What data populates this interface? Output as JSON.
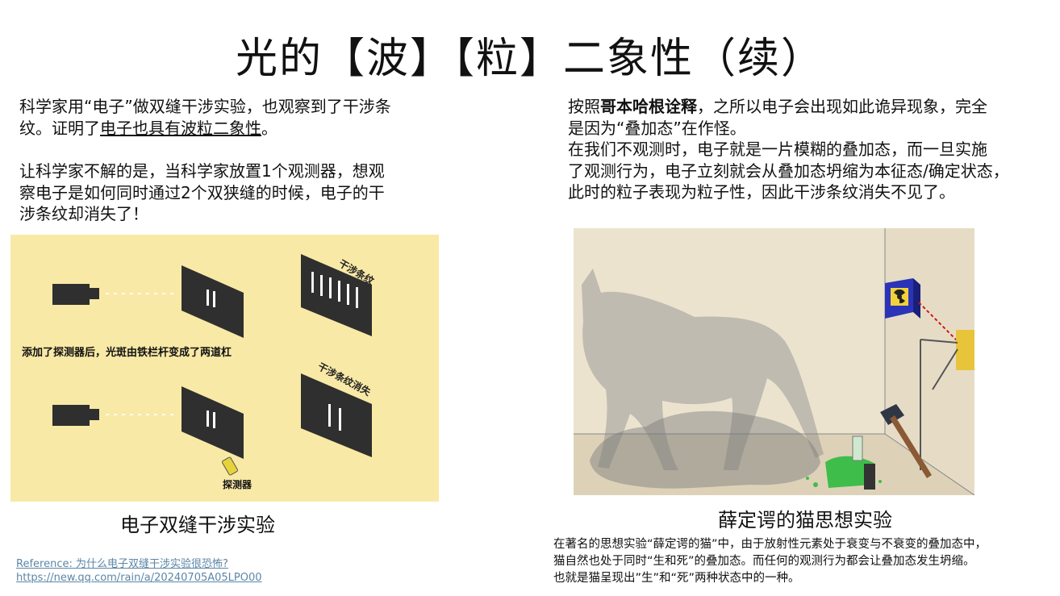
{
  "title": "光的【波】【粒】二象性（续）",
  "left": {
    "p1_a": "科学家用“电子”做双缝干涉实验，也观察到了干涉条",
    "p1_b_prefix": "纹。证明了",
    "p1_b_link": "电子也具有波粒二象性",
    "p1_b_suffix": "。",
    "p2_lines": [
      "让科学家不解的是，当科学家放置1个观测器，想观",
      "察电子是如何同时通过2个双狭缝的时候，电子的干",
      "涉条纹却消失了！"
    ],
    "figure": {
      "label_top": "干涉条纹",
      "label_mid": "添加了探测器后，光斑由铁栏杆变成了两道杠",
      "label_bottom": "干涉条纹消失",
      "label_detector": "探测器"
    },
    "caption": "电子双缝干涉实验",
    "reference_line1": "Reference: 为什么电子双缝干涉实验很恐怖?",
    "reference_line2": "https://new.qq.com/rain/a/20240705A05LPO00"
  },
  "right": {
    "p1_prefix": "按照",
    "p1_bold": "哥本哈根诠释",
    "p1_rest": "，之所以电子会出现如此诡异现象，完全",
    "p1_line2": "是因为“叠加态”在作怪。",
    "p2_lines": [
      "在我们不观测时，电子就是一片模糊的叠加态，而一旦实施",
      "了观测行为，电子立刻就会从叠加态坍缩为本征态/确定状态，",
      "此时的粒子表现为粒子性，因此干涉条纹消失不见了。"
    ],
    "caption": "薛定谔的猫思想实验",
    "note_lines": [
      "在著名的思想实验“薛定谔的猫”中，由于放射性元素处于衰变与不衰变的叠加态中，",
      "猫自然也处于同时“生和死”的叠加态。而任何的观测行为都会让叠加态发生坍缩。",
      "也就是猫呈现出”生”和“死”两种状态中的一种。"
    ]
  }
}
